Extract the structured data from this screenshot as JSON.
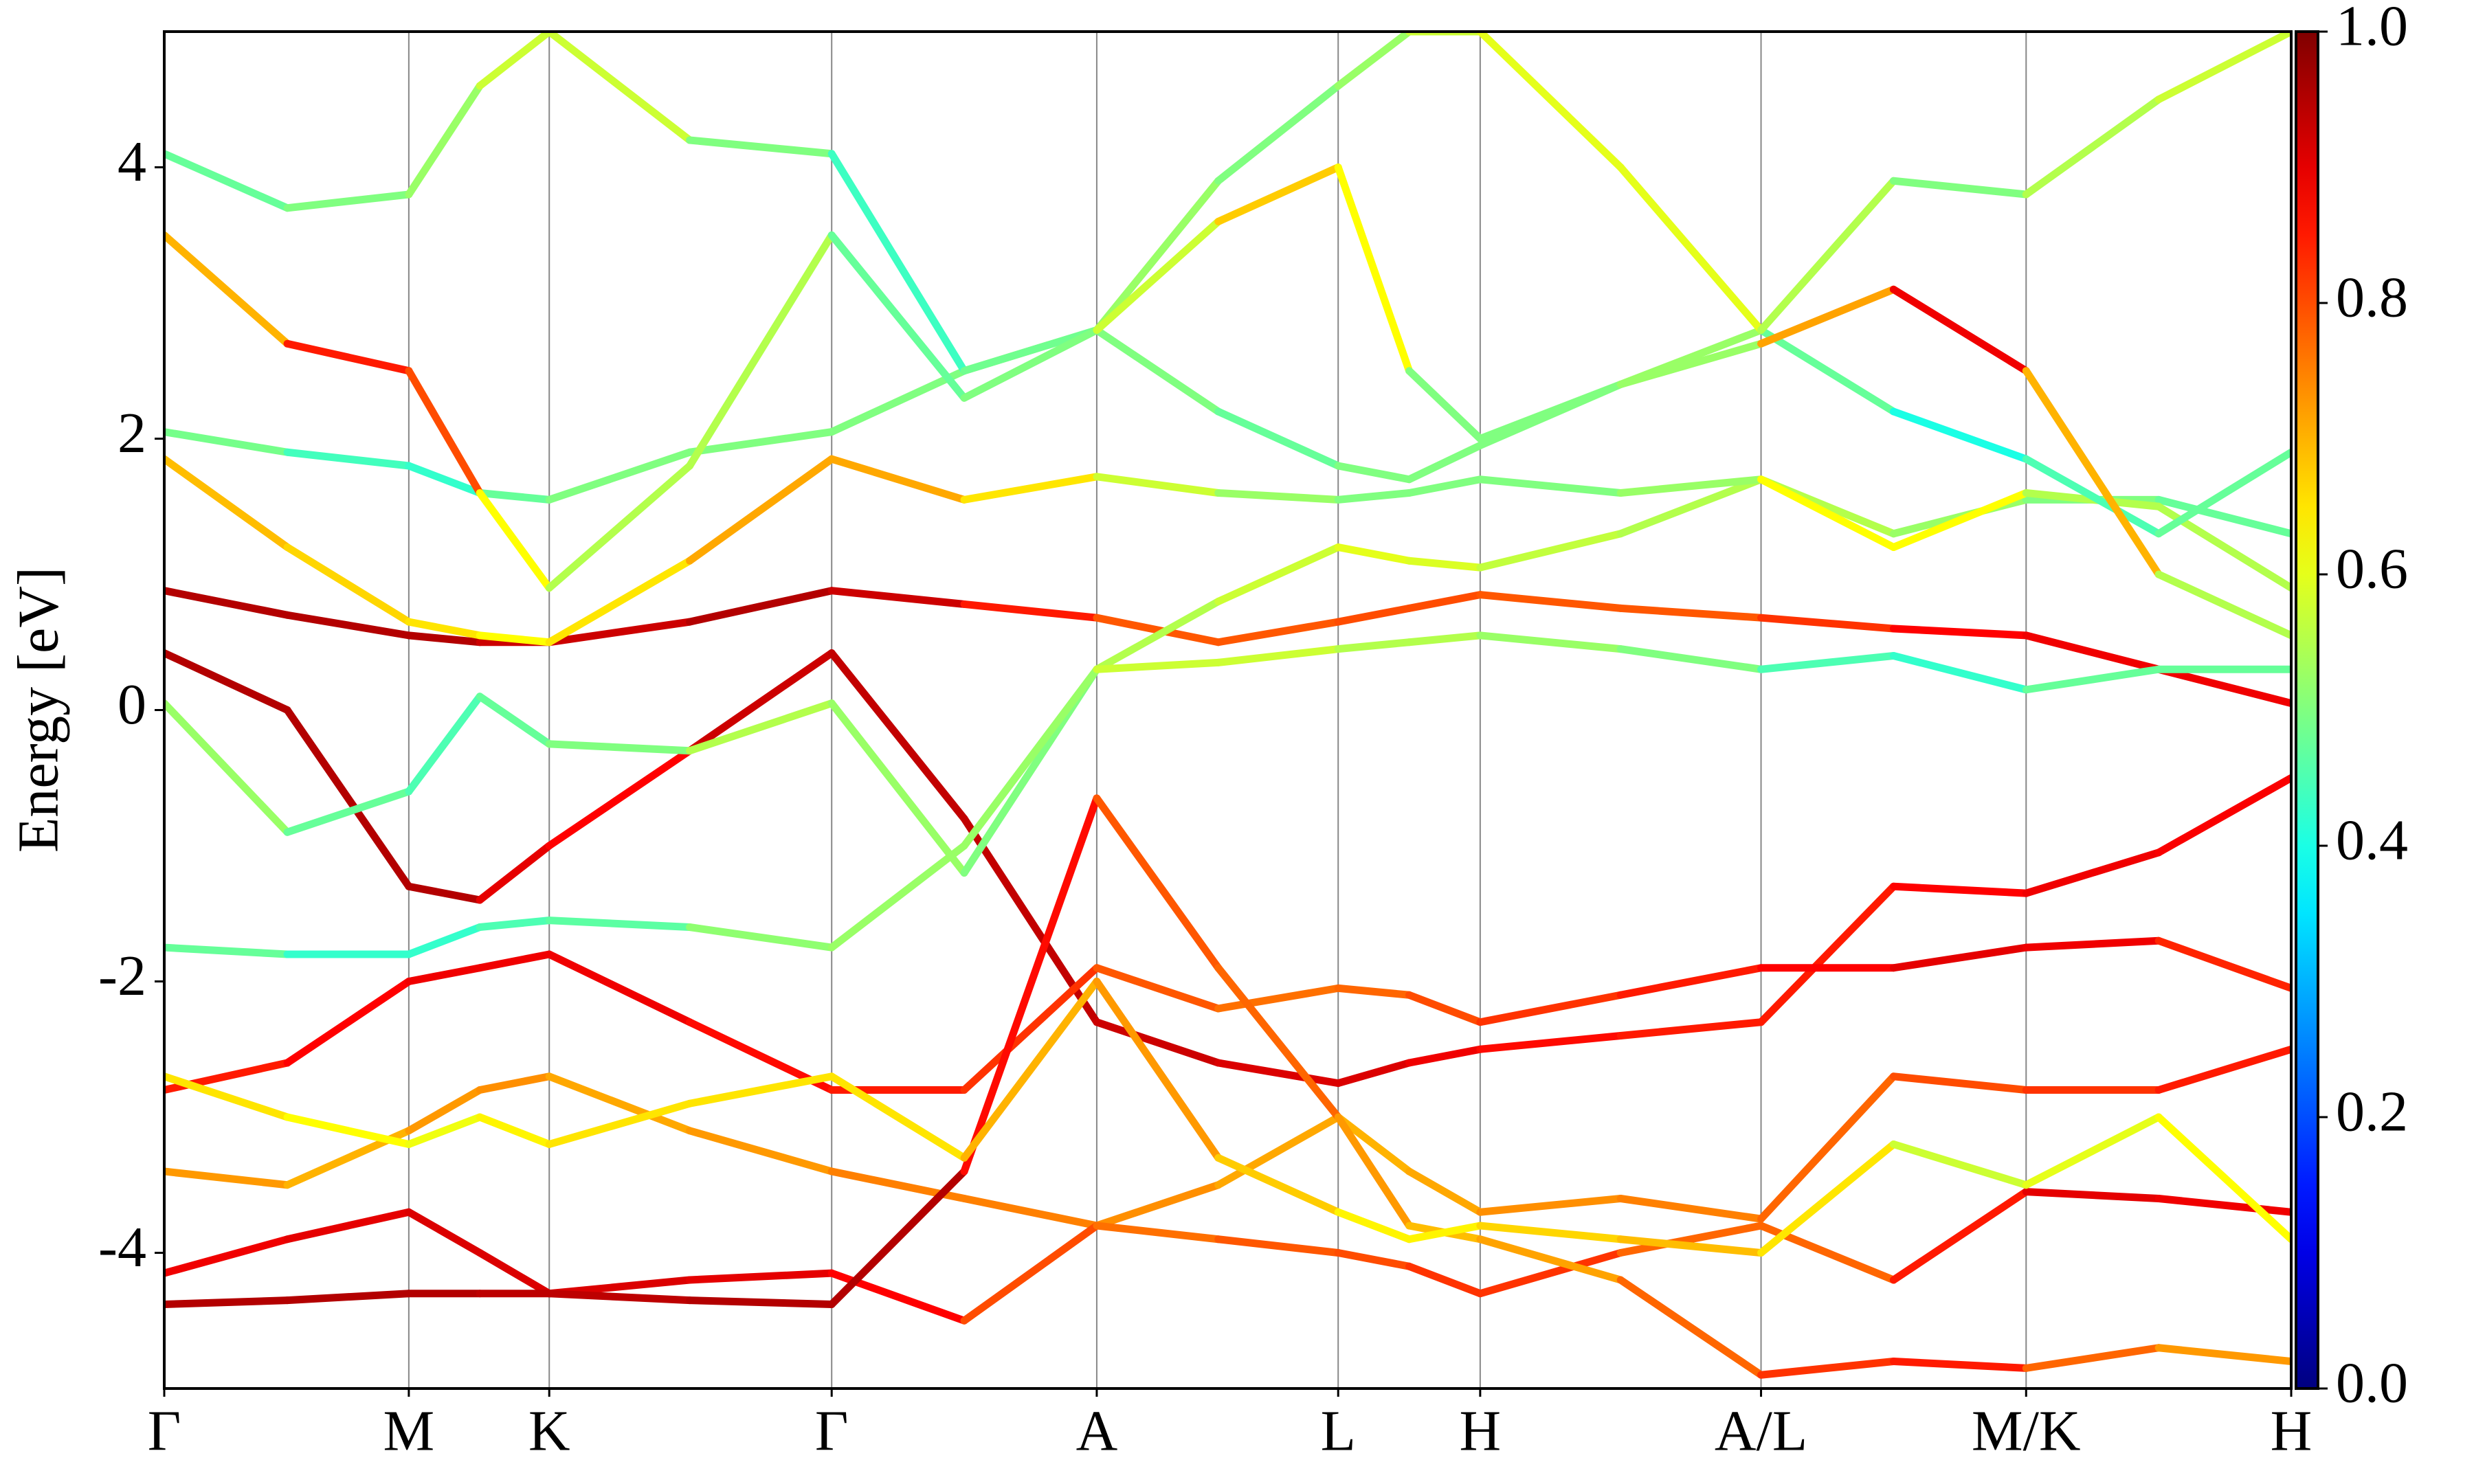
{
  "chart_data": {
    "type": "band-structure",
    "ylabel": "Energy [eV]",
    "x": [
      0,
      0.78,
      1.55,
      2.0,
      2.44,
      3.33,
      4.23,
      5.07,
      5.91,
      6.68,
      7.44,
      7.89,
      8.34,
      9.23,
      10.12,
      10.96,
      11.8,
      12.64,
      13.48
    ],
    "xlim": [
      0,
      13.48
    ],
    "xticks": [
      {
        "value": 0,
        "label": "Γ"
      },
      {
        "value": 1.55,
        "label": "M"
      },
      {
        "value": 2.44,
        "label": "K"
      },
      {
        "value": 4.23,
        "label": "Γ"
      },
      {
        "value": 5.91,
        "label": "A"
      },
      {
        "value": 7.44,
        "label": "L"
      },
      {
        "value": 8.34,
        "label": "H"
      },
      {
        "value": 10.12,
        "label": "A/L"
      },
      {
        "value": 11.8,
        "label": "M/K"
      },
      {
        "value": 13.48,
        "label": "H"
      }
    ],
    "ylim": [
      -5,
      5
    ],
    "yticks": [
      -4,
      -2,
      0,
      2,
      4
    ],
    "colormap": "jet",
    "colorbar": {
      "lim": [
        0,
        1
      ],
      "ticks": [
        {
          "value": 0,
          "label": "0.0"
        },
        {
          "value": 0.2,
          "label": "0.2"
        },
        {
          "value": 0.4,
          "label": "0.4"
        },
        {
          "value": 0.6,
          "label": "0.6"
        },
        {
          "value": 0.8,
          "label": "0.8"
        },
        {
          "value": 1,
          "label": "1.0"
        }
      ]
    },
    "series": [
      {
        "values": [
          0.88,
          0.7,
          0.55,
          0.5,
          0.5,
          0.65,
          0.88,
          0.78,
          0.68,
          0.5,
          0.65,
          0.75,
          0.85,
          0.75,
          0.68,
          0.6,
          0.55,
          0.3,
          0.05
        ],
        "weights": [
          0.95,
          0.95,
          0.95,
          0.95,
          0.9,
          0.95,
          0.95,
          0.9,
          0.8,
          0.78,
          0.8,
          0.8,
          0.8,
          0.78,
          0.8,
          0.85,
          0.9,
          0.88,
          0.9
        ]
      },
      {
        "values": [
          0.42,
          0.0,
          -1.3,
          -1.4,
          -1.0,
          -0.3,
          0.42,
          -0.8,
          -2.3,
          -2.6,
          -2.75,
          -2.6,
          -2.5,
          -2.4,
          -2.3,
          -1.3,
          -1.35,
          -1.05,
          -0.5
        ],
        "weights": [
          0.95,
          0.95,
          0.95,
          0.95,
          0.85,
          0.9,
          0.95,
          0.92,
          0.95,
          0.9,
          0.92,
          0.9,
          0.88,
          0.85,
          0.85,
          0.85,
          0.9,
          0.88,
          0.88
        ]
      },
      {
        "values": [
          0.05,
          -0.9,
          -0.6,
          0.1,
          -0.25,
          -0.3,
          0.05,
          -1.2,
          0.3,
          0.8,
          1.2,
          1.1,
          1.05,
          1.3,
          1.7,
          1.3,
          1.55,
          1.55,
          1.3
        ],
        "weights": [
          0.55,
          0.5,
          0.45,
          0.45,
          0.5,
          0.5,
          0.6,
          0.45,
          0.55,
          0.55,
          0.6,
          0.6,
          0.58,
          0.55,
          0.55,
          0.55,
          0.5,
          0.5,
          0.45
        ]
      },
      {
        "values": [
          -1.75,
          -1.8,
          -1.8,
          -1.6,
          -1.55,
          -1.6,
          -1.75,
          -1.0,
          0.3,
          0.35,
          0.45,
          0.5,
          0.55,
          0.45,
          0.3,
          0.4,
          0.15,
          0.3,
          0.3
        ],
        "weights": [
          0.5,
          0.45,
          0.4,
          0.45,
          0.45,
          0.48,
          0.55,
          0.5,
          0.55,
          0.6,
          0.55,
          0.55,
          0.55,
          0.5,
          0.5,
          0.4,
          0.45,
          0.5,
          0.45
        ]
      },
      {
        "values": [
          1.85,
          1.2,
          0.65,
          0.55,
          0.5,
          1.1,
          1.85,
          1.55,
          1.72,
          1.6,
          1.55,
          1.6,
          1.7,
          1.6,
          1.7,
          1.2,
          1.6,
          1.5,
          0.9
        ],
        "weights": [
          0.7,
          0.68,
          0.65,
          0.65,
          0.6,
          0.7,
          0.72,
          0.7,
          0.6,
          0.55,
          0.5,
          0.5,
          0.5,
          0.5,
          0.55,
          0.7,
          0.55,
          0.55,
          0.55
        ]
      },
      {
        "values": [
          2.05,
          1.9,
          1.8,
          1.6,
          1.55,
          1.9,
          2.05,
          2.5,
          2.8,
          2.2,
          1.8,
          1.7,
          1.95,
          2.4,
          2.8,
          2.2,
          1.85,
          1.3,
          1.9
        ],
        "weights": [
          0.5,
          0.48,
          0.4,
          0.45,
          0.5,
          0.5,
          0.5,
          0.5,
          0.55,
          0.45,
          0.5,
          0.5,
          0.5,
          0.5,
          0.55,
          0.4,
          0.4,
          0.5,
          0.45
        ]
      },
      {
        "values": [
          4.1,
          3.7,
          3.8,
          4.6,
          5.0,
          4.2,
          4.1,
          2.5,
          2.8,
          3.9,
          4.6,
          5.0,
          5.0,
          4.0,
          2.8,
          3.9,
          3.8,
          4.5,
          5.0
        ],
        "weights": [
          0.45,
          0.5,
          0.5,
          0.55,
          0.6,
          0.55,
          0.45,
          0.42,
          0.55,
          0.5,
          0.5,
          0.55,
          0.6,
          0.6,
          0.6,
          0.5,
          0.5,
          0.6,
          0.55
        ]
      },
      {
        "values": [
          3.5,
          2.7,
          2.5,
          1.6,
          0.9,
          1.8,
          3.5,
          2.3,
          2.8,
          3.6,
          4.0,
          2.5,
          2.0,
          2.4,
          2.7,
          3.1,
          2.5,
          1.0,
          0.55
        ],
        "weights": [
          0.55,
          0.85,
          0.85,
          0.75,
          0.5,
          0.6,
          0.5,
          0.45,
          0.55,
          0.6,
          0.75,
          0.5,
          0.5,
          0.5,
          0.55,
          0.88,
          0.9,
          0.5,
          0.6
        ]
      },
      {
        "values": [
          -2.8,
          -2.6,
          -2.0,
          -1.9,
          -1.8,
          -2.3,
          -2.8,
          -2.8,
          -1.9,
          -2.2,
          -2.05,
          -2.1,
          -2.3,
          -2.1,
          -1.9,
          -1.9,
          -1.75,
          -1.7,
          -2.05
        ],
        "weights": [
          0.85,
          0.85,
          0.9,
          0.88,
          0.9,
          0.88,
          0.85,
          0.85,
          0.8,
          0.78,
          0.75,
          0.8,
          0.8,
          0.85,
          0.85,
          0.9,
          0.9,
          0.88,
          0.8
        ]
      },
      {
        "values": [
          -3.4,
          -3.5,
          -3.1,
          -2.8,
          -2.7,
          -3.1,
          -3.4,
          -3.6,
          -3.8,
          -3.5,
          -3.0,
          -3.4,
          -3.7,
          -3.6,
          -3.75,
          -2.7,
          -2.8,
          -2.8,
          -2.5
        ],
        "weights": [
          0.75,
          0.7,
          0.7,
          0.75,
          0.72,
          0.7,
          0.75,
          0.75,
          0.75,
          0.72,
          0.7,
          0.7,
          0.72,
          0.75,
          0.75,
          0.8,
          0.8,
          0.85,
          0.85
        ]
      },
      {
        "values": [
          -4.15,
          -3.9,
          -3.7,
          -4.0,
          -4.3,
          -4.2,
          -4.15,
          -4.5,
          -3.8,
          -3.9,
          -4.0,
          -4.1,
          -4.3,
          -4.0,
          -3.8,
          -4.2,
          -3.55,
          -3.6,
          -3.7
        ],
        "weights": [
          0.9,
          0.88,
          0.92,
          0.9,
          0.92,
          0.9,
          0.9,
          0.85,
          0.75,
          0.78,
          0.8,
          0.8,
          0.85,
          0.8,
          0.75,
          0.8,
          0.9,
          0.9,
          0.88
        ]
      },
      {
        "values": [
          -4.38,
          -4.35,
          -4.3,
          -4.3,
          -4.3,
          -4.35,
          -4.38,
          -3.4,
          -0.65,
          -1.9,
          -3.0,
          -3.8,
          -3.9,
          -4.2,
          -4.9,
          -4.8,
          -4.85,
          -4.7,
          -4.8
        ],
        "weights": [
          0.95,
          0.95,
          0.95,
          0.95,
          0.93,
          0.95,
          0.95,
          0.95,
          0.78,
          0.8,
          0.75,
          0.7,
          0.68,
          0.75,
          0.8,
          0.85,
          0.85,
          0.7,
          0.75
        ]
      },
      {
        "values": [
          -2.7,
          -3.0,
          -3.2,
          -3.0,
          -3.2,
          -2.9,
          -2.7,
          -3.3,
          -2.0,
          -3.3,
          -3.7,
          -3.9,
          -3.8,
          -3.9,
          -4.0,
          -3.2,
          -3.5,
          -3.0,
          -3.9
        ],
        "weights": [
          0.65,
          0.65,
          0.6,
          0.62,
          0.65,
          0.65,
          0.65,
          0.65,
          0.75,
          0.7,
          0.65,
          0.62,
          0.65,
          0.68,
          0.7,
          0.6,
          0.55,
          0.65,
          0.6
        ]
      }
    ]
  }
}
